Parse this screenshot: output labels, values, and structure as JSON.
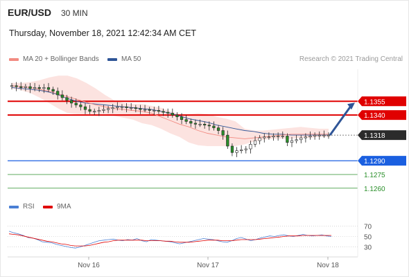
{
  "header": {
    "pair": "EUR/USD",
    "timeframe": "30 MIN",
    "datetime": "Thursday, November 18, 2021 12:42:34 AM CET"
  },
  "legend_top": {
    "items": [
      {
        "label": "MA 20 + Bollinger Bands",
        "color": "#f28b82"
      },
      {
        "label": "MA 50",
        "color": "#2f5597"
      }
    ],
    "credit": "Research © 2021 Trading Central"
  },
  "legend_bottom": {
    "items": [
      {
        "label": "RSI",
        "color": "#4a7fd4"
      },
      {
        "label": "9MA",
        "color": "#e00000"
      }
    ]
  },
  "chart_data": {
    "type": "line",
    "symbol": "EUR/USD",
    "interval": "30 MIN",
    "price_panel": {
      "close_series": [
        1.1372,
        1.1371,
        1.137,
        1.1371,
        1.1369,
        1.137,
        1.1369,
        1.137,
        1.1368,
        1.1366,
        1.1362,
        1.1359,
        1.1356,
        1.1353,
        1.1351,
        1.1349,
        1.1346,
        1.1344,
        1.1344,
        1.1345,
        1.1346,
        1.1347,
        1.1348,
        1.1349,
        1.1349,
        1.1348,
        1.1348,
        1.1347,
        1.1346,
        1.1346,
        1.1345,
        1.1345,
        1.1344,
        1.1343,
        1.1342,
        1.134,
        1.1338,
        1.1335,
        1.1333,
        1.1331,
        1.133,
        1.133,
        1.1329,
        1.1328,
        1.1326,
        1.1323,
        1.1318,
        1.1306,
        1.1299,
        1.1301,
        1.1302,
        1.1303,
        1.1308,
        1.1312,
        1.1315,
        1.1316,
        1.1316,
        1.1317,
        1.1317,
        1.1317,
        1.131,
        1.1312,
        1.1313,
        1.1315,
        1.1316,
        1.1317,
        1.1318,
        1.1318,
        1.1318,
        1.1318
      ],
      "bollinger_upper": [
        1.1375,
        1.1375,
        1.1376,
        1.1378,
        1.1381,
        1.1383,
        1.1383,
        1.138,
        1.1375,
        1.1369,
        1.1362,
        1.1356,
        1.1353,
        1.1352,
        1.1352,
        1.135,
        1.1348,
        1.1344,
        1.1341,
        1.1341,
        1.1342,
        1.1341,
        1.1338,
        1.1336,
        1.1333,
        1.1325,
        1.1323,
        1.1323,
        1.1324,
        1.1325,
        1.1326,
        1.1327,
        1.1326,
        1.1325,
        1.1325
      ],
      "bollinger_lower": [
        1.1369,
        1.1367,
        1.1364,
        1.1359,
        1.1353,
        1.1347,
        1.1342,
        1.1341,
        1.1341,
        1.1341,
        1.1341,
        1.1339,
        1.1337,
        1.1335,
        1.1331,
        1.1329,
        1.1325,
        1.132,
        1.1316,
        1.131,
        1.1307,
        1.1306,
        1.1306,
        1.1306,
        1.1306,
        1.1308,
        1.1311,
        1.1313,
        1.1314,
        1.1314,
        1.1314,
        1.1315,
        1.1315,
        1.1316,
        1.1316
      ],
      "ma20": [
        1.1372,
        1.1371,
        1.137,
        1.1368,
        1.1366,
        1.1363,
        1.136,
        1.1357,
        1.1354,
        1.1351,
        1.1349,
        1.1347,
        1.1346,
        1.1345,
        1.1344,
        1.1342,
        1.1338,
        1.1334,
        1.133,
        1.1327,
        1.1323,
        1.132,
        1.1318,
        1.1316,
        1.1315,
        1.1314,
        1.1315,
        1.1316,
        1.1317,
        1.1318,
        1.1319,
        1.1319,
        1.1319,
        1.1319,
        1.1319
      ],
      "ma50": [
        1.137,
        1.1369,
        1.1368,
        1.1367,
        1.1365,
        1.1362,
        1.1358,
        1.1355,
        1.1353,
        1.1352,
        1.1351,
        1.135,
        1.1349,
        1.1348,
        1.1347,
        1.1346,
        1.1344,
        1.1342,
        1.1339,
        1.1336,
        1.1334,
        1.1332,
        1.1329,
        1.1327,
        1.1325,
        1.1323,
        1.1322,
        1.132,
        1.1319,
        1.1319,
        1.1318,
        1.1318,
        1.1318,
        1.1318,
        1.1318
      ],
      "levels": [
        {
          "value": 1.1355,
          "label": "1.1355",
          "color": "#e00000",
          "style": "resistance"
        },
        {
          "value": 1.134,
          "label": "1.1340",
          "color": "#e00000",
          "style": "resistance"
        },
        {
          "value": 1.1318,
          "label": "1.1318",
          "color": "#2b2b2b",
          "style": "last-price"
        },
        {
          "value": 1.129,
          "label": "1.1290",
          "color": "#1a5fe0",
          "style": "pivot"
        },
        {
          "value": 1.1275,
          "label": "1.1275",
          "color": "#2a8f2a",
          "style": "support"
        },
        {
          "value": 1.126,
          "label": "1.1260",
          "color": "#2a8f2a",
          "style": "support"
        }
      ],
      "ylim": [
        1.125,
        1.139
      ]
    },
    "rsi_panel": {
      "rsi": [
        60,
        57,
        55,
        52,
        48,
        47,
        44,
        40,
        39,
        38,
        35,
        33,
        31,
        29,
        28,
        30,
        33,
        36,
        39,
        42,
        43,
        44,
        45,
        43,
        42,
        44,
        43,
        46,
        42,
        40,
        44,
        43,
        42,
        41,
        40,
        38,
        36,
        38,
        40,
        42,
        44,
        46,
        45,
        44,
        42,
        40,
        39,
        42,
        46,
        48,
        45,
        42,
        44,
        47,
        49,
        51,
        50,
        52,
        53,
        51,
        50,
        52,
        54,
        52,
        51,
        52,
        53,
        51,
        50
      ],
      "rsi_ma9": [
        55,
        54,
        53,
        51,
        49,
        47,
        45,
        43,
        41,
        40,
        38,
        36,
        35,
        33,
        32,
        32,
        32,
        33,
        35,
        37,
        39,
        40,
        42,
        43,
        43,
        43,
        43,
        43,
        43,
        42,
        42,
        42,
        42,
        41,
        41,
        40,
        39,
        39,
        39,
        40,
        41,
        42,
        43,
        43,
        43,
        42,
        42,
        42,
        43,
        44,
        44,
        44,
        44,
        45,
        46,
        47,
        48,
        49,
        50,
        51,
        51,
        51,
        52,
        52,
        52,
        52,
        52,
        52,
        52
      ],
      "ticks": [
        "70",
        "50",
        "30"
      ],
      "ylim": [
        15,
        85
      ]
    },
    "x_tick_labels": [
      "Nov 16",
      "Nov 17",
      "Nov 18"
    ]
  }
}
